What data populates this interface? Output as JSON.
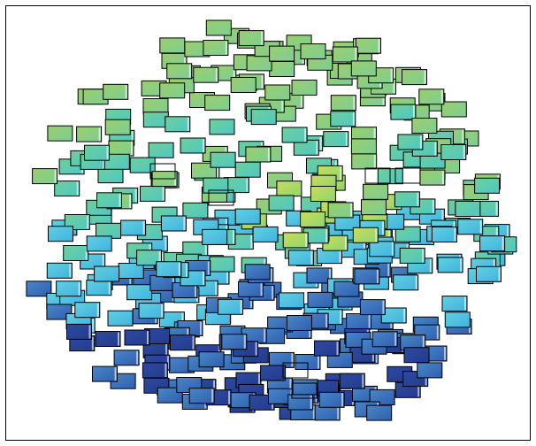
{
  "image": {
    "title": "",
    "subject": "tiled-thumbnail-cloud",
    "background_color": "#ffffff",
    "frame_color": "#000000",
    "tile_outline_color": "#000000",
    "gradient_stops": {
      "top": [
        "#9ccd6d",
        "#7ccf94"
      ],
      "middle_green": [
        "#6fcf9a",
        "#4fc7c4"
      ],
      "lime_highlight": [
        "#c9dd5a",
        "#8fd46f"
      ],
      "middle_cyan": [
        "#63cfe0",
        "#3fb3e0"
      ],
      "lower_blue": [
        "#4a86c8",
        "#2f5fae"
      ],
      "bottom_navy": [
        "#2d4aa0",
        "#233b8c"
      ]
    },
    "tile_count_estimate": 420
  }
}
